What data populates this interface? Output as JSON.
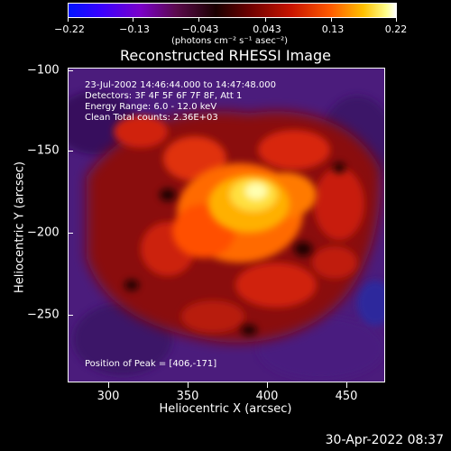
{
  "colorbar": {
    "ticks": [
      "−0.22",
      "−0.13",
      "−0.043",
      "0.043",
      "0.13",
      "0.22"
    ],
    "units": "(photons cm⁻² s⁻¹ asec⁻²)"
  },
  "title": "Reconstructed RHESSI Image",
  "info": {
    "line1": "23-Jul-2002 14:46:44.000 to 14:47:48.000",
    "line2": "Detectors: 3F 4F 5F 6F 7F 8F, Att 1",
    "line3": "Energy Range: 6.0 - 12.0 keV",
    "line4": "Clean     Total counts: 2.36E+03",
    "peak": "Position of Peak = [406,-171]"
  },
  "axes": {
    "x_title": "Heliocentric X (arcsec)",
    "y_title": "Heliocentric Y (arcsec)",
    "x_ticks": [
      "300",
      "350",
      "400",
      "450"
    ],
    "y_ticks": [
      "−100",
      "−150",
      "−200",
      "−250"
    ]
  },
  "timestamp": "30-Apr-2022 08:37"
}
